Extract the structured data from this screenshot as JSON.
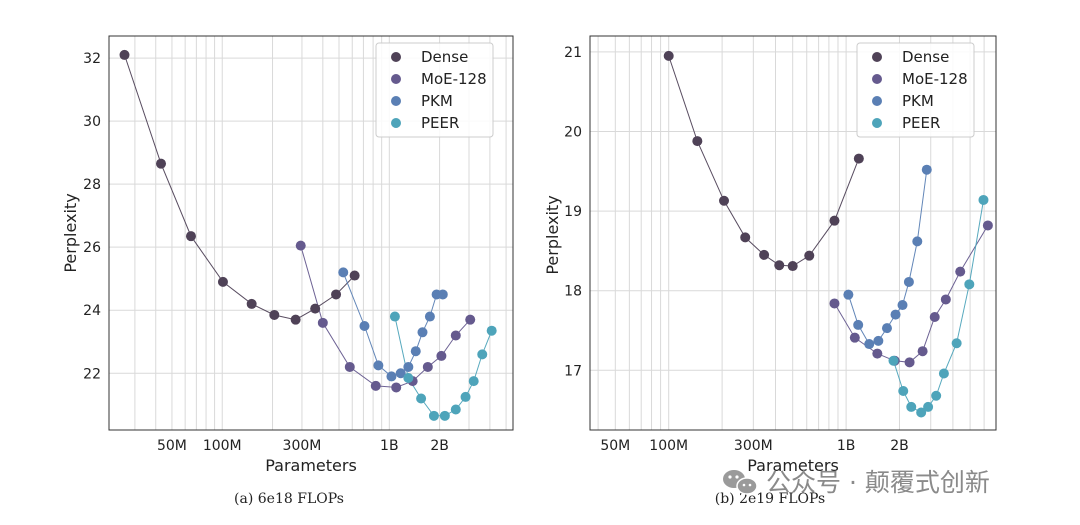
{
  "colors": {
    "Dense": "#4f4257",
    "MoE-128": "#655a8e",
    "PKM": "#5a7fb4",
    "PEER": "#4ea4ba"
  },
  "watermark": {
    "icon": "wechat-icon",
    "text": "公众号 · 颠覆式创新"
  },
  "chart_data": [
    {
      "type": "line",
      "caption": "(a) 6e18 FLOPs",
      "xlabel": "Parameters",
      "ylabel": "Perplexity",
      "xscale": "log",
      "xlim": [
        21000000,
        5500000000
      ],
      "ylim": [
        20.2,
        32.7
      ],
      "xticks": [
        {
          "value": 50000000,
          "label": "50M"
        },
        {
          "value": 100000000,
          "label": "100M"
        },
        {
          "value": 300000000,
          "label": "300M"
        },
        {
          "value": 1000000000,
          "label": "1B"
        },
        {
          "value": 2000000000,
          "label": "2B"
        }
      ],
      "yticks": [
        22,
        24,
        26,
        28,
        30,
        32
      ],
      "legend": "top-right",
      "series": [
        {
          "name": "Dense",
          "x": [
            26000000,
            43000000,
            65000000,
            101000000,
            150000000,
            205000000,
            275000000,
            360000000,
            480000000,
            620000000
          ],
          "y": [
            32.1,
            28.65,
            26.35,
            24.9,
            24.2,
            23.85,
            23.7,
            24.05,
            24.5,
            25.1
          ]
        },
        {
          "name": "MoE-128",
          "x": [
            295000000,
            400000000,
            580000000,
            830000000,
            1100000000,
            1380000000,
            1700000000,
            2050000000,
            2500000000,
            3050000000
          ],
          "y": [
            26.05,
            23.6,
            22.2,
            21.6,
            21.55,
            21.75,
            22.2,
            22.55,
            23.2,
            23.7
          ]
        },
        {
          "name": "PKM",
          "x": [
            530000000,
            710000000,
            860000000,
            1030000000,
            1170000000,
            1300000000,
            1440000000,
            1580000000,
            1750000000,
            1920000000,
            2090000000
          ],
          "y": [
            25.2,
            23.5,
            22.25,
            21.9,
            22.0,
            22.2,
            22.7,
            23.3,
            23.8,
            24.5,
            24.5
          ]
        },
        {
          "name": "PEER",
          "x": [
            1080000000,
            1300000000,
            1550000000,
            1850000000,
            2150000000,
            2500000000,
            2860000000,
            3200000000,
            3600000000,
            4100000000
          ],
          "y": [
            23.8,
            21.85,
            21.2,
            20.65,
            20.65,
            20.85,
            21.25,
            21.75,
            22.6,
            23.35
          ]
        }
      ]
    },
    {
      "type": "line",
      "caption": "(b) 2e19 FLOPs",
      "xlabel": "Parameters",
      "ylabel": "Perplexity",
      "xscale": "log",
      "xlim": [
        36000000,
        7000000000
      ],
      "ylim": [
        16.25,
        21.2
      ],
      "xticks": [
        {
          "value": 50000000,
          "label": "50M"
        },
        {
          "value": 100000000,
          "label": "100M"
        },
        {
          "value": 300000000,
          "label": "300M"
        },
        {
          "value": 1000000000,
          "label": "1B"
        },
        {
          "value": 2000000000,
          "label": "2B"
        }
      ],
      "yticks": [
        17,
        18,
        19,
        20,
        21
      ],
      "legend": "top-right",
      "series": [
        {
          "name": "Dense",
          "x": [
            100000000,
            145000000,
            205000000,
            270000000,
            345000000,
            420000000,
            500000000,
            620000000,
            860000000,
            1180000000
          ],
          "y": [
            20.95,
            19.88,
            19.13,
            18.67,
            18.45,
            18.32,
            18.31,
            18.44,
            18.88,
            19.66
          ]
        },
        {
          "name": "MoE-128",
          "x": [
            860000000,
            1120000000,
            1500000000,
            1880000000,
            2280000000,
            2700000000,
            3160000000,
            3650000000,
            4400000000,
            6300000000
          ],
          "y": [
            17.84,
            17.41,
            17.21,
            17.12,
            17.1,
            17.24,
            17.67,
            17.89,
            18.24,
            18.82
          ]
        },
        {
          "name": "PKM",
          "x": [
            1030000000,
            1170000000,
            1350000000,
            1520000000,
            1700000000,
            1900000000,
            2080000000,
            2260000000,
            2520000000,
            2850000000
          ],
          "y": [
            17.95,
            17.57,
            17.33,
            17.37,
            17.53,
            17.7,
            17.82,
            18.11,
            18.62,
            19.52
          ]
        },
        {
          "name": "PEER",
          "x": [
            1850000000,
            2100000000,
            2330000000,
            2650000000,
            2900000000,
            3220000000,
            3560000000,
            4200000000,
            4950000000,
            5950000000
          ],
          "y": [
            17.12,
            16.74,
            16.54,
            16.47,
            16.54,
            16.68,
            16.96,
            17.34,
            18.08,
            19.14
          ]
        }
      ]
    }
  ]
}
